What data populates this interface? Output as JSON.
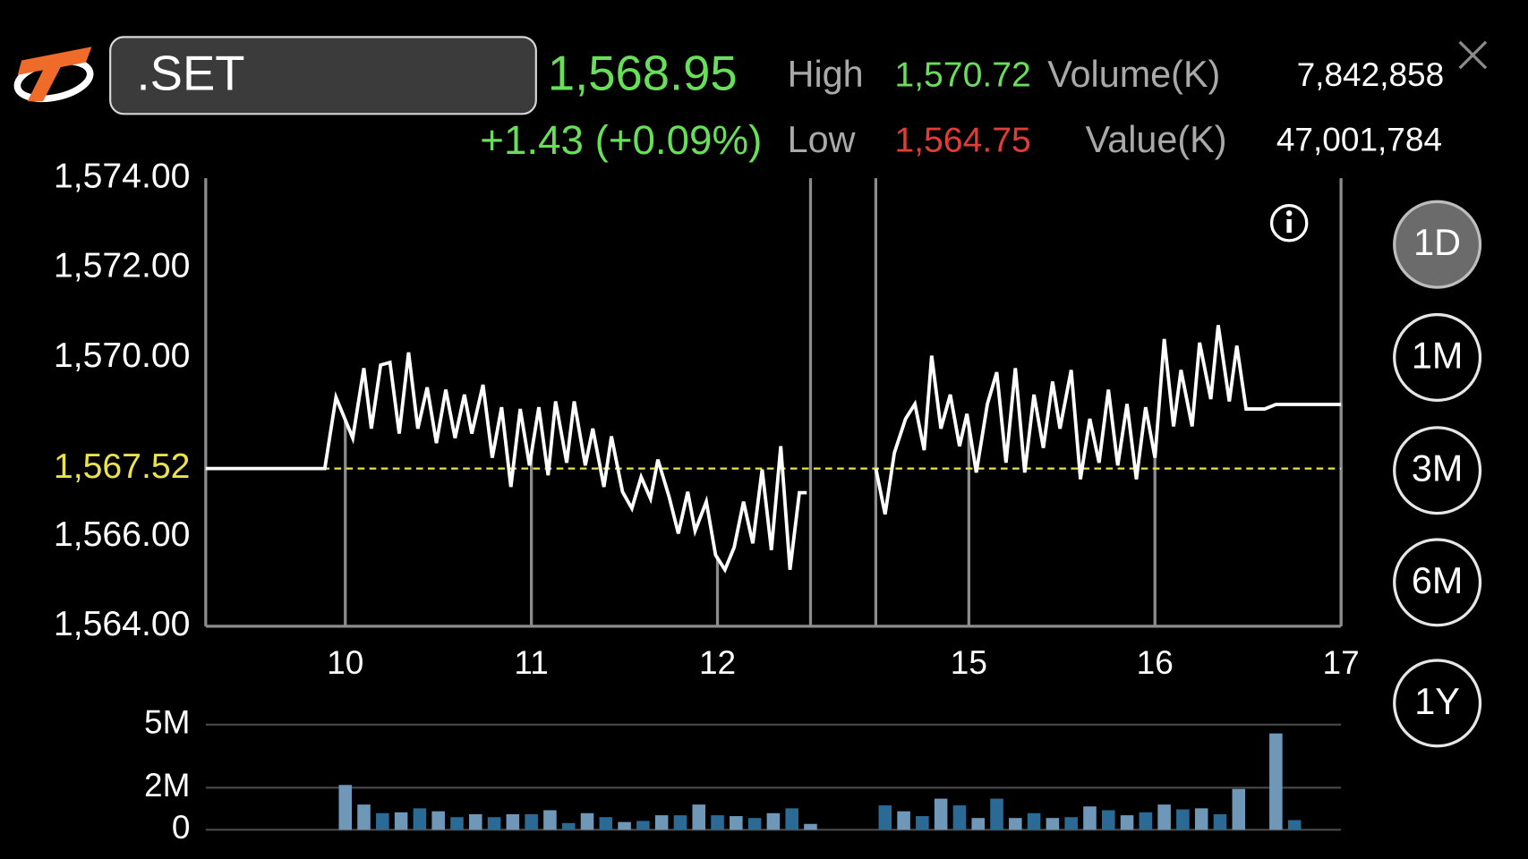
{
  "header": {
    "symbol": ".SET",
    "last": "1,568.95",
    "change": "+1.43 (+0.09%)",
    "high_label": "High",
    "high": "1,570.72",
    "low_label": "Low",
    "low": "1,564.75",
    "volume_label": "Volume(K)",
    "volume": "7,842,858",
    "value_label": "Value(K)",
    "value": "47,001,784"
  },
  "ranges": [
    "1D",
    "1M",
    "3M",
    "6M",
    "1Y"
  ],
  "selected_range": 0,
  "chart_data": [
    {
      "type": "line",
      "x": [
        9.25,
        9.89,
        9.95,
        10.04,
        10.1,
        10.14,
        10.19,
        10.24,
        10.29,
        10.34,
        10.39,
        10.44,
        10.49,
        10.54,
        10.59,
        10.64,
        10.68,
        10.74,
        10.79,
        10.84,
        10.89,
        10.94,
        10.99,
        11.04,
        11.09,
        11.13,
        11.19,
        11.23,
        11.29,
        11.33,
        11.39,
        11.43,
        11.49,
        11.54,
        11.59,
        11.64,
        11.68,
        11.74,
        11.79,
        11.84,
        11.88,
        11.94,
        11.99,
        12.04,
        12.09,
        12.14,
        12.19,
        12.24,
        12.29,
        12.34,
        12.39,
        12.44,
        12.48,
        13.5,
        14.5,
        14.55,
        14.6,
        14.66,
        14.71,
        14.76,
        14.8,
        14.85,
        14.9,
        14.95,
        14.99,
        15.04,
        15.1,
        15.15,
        15.2,
        15.25,
        15.3,
        15.35,
        15.4,
        15.45,
        15.49,
        15.55,
        15.6,
        15.65,
        15.7,
        15.75,
        15.8,
        15.85,
        15.9,
        15.95,
        16.0,
        16.05,
        16.1,
        16.14,
        16.2,
        16.24,
        16.3,
        16.34,
        16.4,
        16.44,
        16.49,
        16.59,
        16.65,
        17
      ],
      "series": [
        {
          "color": "#ffffff",
          "values": [
            1567.52,
            1567.52,
            1569.11,
            1568.2,
            1569.76,
            1568.41,
            1569.83,
            1569.89,
            1568.3,
            1570.11,
            1568.41,
            1569.33,
            1568.09,
            1569.28,
            1568.2,
            1569.17,
            1568.3,
            1569.39,
            1567.76,
            1568.89,
            1567.11,
            1568.85,
            1567.59,
            1568.89,
            1567.37,
            1569.02,
            1567.65,
            1569.02,
            1567.59,
            1568.41,
            1567.11,
            1568.24,
            1567.0,
            1566.63,
            1567.33,
            1566.85,
            1567.72,
            1566.89,
            1566.07,
            1567.0,
            1566.13,
            1566.78,
            1565.59,
            1565.26,
            1565.76,
            1566.78,
            1565.85,
            1567.5,
            1565.7,
            1568.02,
            1565.26,
            1566.98,
            1566.98,
            null,
            1567.52,
            1566.5,
            1567.87,
            1568.63,
            1568.96,
            1567.93,
            1570.04,
            1568.41,
            1569.17,
            1568.02,
            1568.74,
            1567.43,
            1568.96,
            1569.67,
            1567.65,
            1569.76,
            1567.43,
            1569.17,
            1567.98,
            1569.46,
            1568.41,
            1569.72,
            1567.28,
            1568.63,
            1567.65,
            1569.28,
            1567.59,
            1568.96,
            1567.28,
            1568.89,
            1567.76,
            1570.41,
            1568.46,
            1569.72,
            1568.46,
            1570.33,
            1569.07,
            1570.72,
            1569.02,
            1570.26,
            1568.85,
            1568.85,
            1568.95,
            1568.95
          ]
        }
      ],
      "xlim": [
        9.25,
        17
      ],
      "session_break": [
        12.5,
        14.5
      ],
      "xticks": [
        10,
        11,
        12,
        15,
        16,
        17
      ],
      "ylim": [
        1564,
        1574
      ],
      "yticks": [
        {
          "value": 1564,
          "label": "1,564.00"
        },
        {
          "value": 1566,
          "label": "1,566.00"
        },
        {
          "value": 1570,
          "label": "1,570.00"
        },
        {
          "value": 1572,
          "label": "1,572.00"
        },
        {
          "value": 1574,
          "label": "1,574.00"
        }
      ],
      "reference": {
        "value": 1567.52,
        "label": "1,567.52",
        "color": "#ebe24c"
      }
    },
    {
      "type": "bar",
      "x": [
        10.0,
        10.1,
        10.2,
        10.3,
        10.4,
        10.5,
        10.6,
        10.7,
        10.8,
        10.9,
        11.0,
        11.1,
        11.2,
        11.3,
        11.4,
        11.5,
        11.6,
        11.7,
        11.8,
        11.9,
        12.0,
        12.1,
        12.2,
        12.3,
        12.4,
        12.5,
        14.55,
        14.65,
        14.75,
        14.85,
        14.95,
        15.05,
        15.15,
        15.25,
        15.35,
        15.45,
        15.55,
        15.65,
        15.75,
        15.85,
        15.95,
        16.05,
        16.15,
        16.25,
        16.35,
        16.45,
        16.55,
        16.65,
        16.75
      ],
      "values": [
        2130000,
        1200000,
        790000,
        830000,
        1020000,
        880000,
        600000,
        740000,
        600000,
        740000,
        740000,
        930000,
        320000,
        790000,
        600000,
        370000,
        420000,
        690000,
        690000,
        1200000,
        690000,
        650000,
        560000,
        790000,
        1020000,
        280000,
        1160000,
        880000,
        650000,
        1480000,
        1160000,
        560000,
        1480000,
        560000,
        790000,
        560000,
        600000,
        1110000,
        930000,
        690000,
        830000,
        1200000,
        970000,
        1020000,
        740000,
        1940000,
        0,
        4580000,
        460000
      ],
      "colors": [
        "#6f97b8",
        "#6f97b8",
        "#2c6a96",
        "#6f97b8",
        "#2c6a96",
        "#6f97b8",
        "#2c6a96",
        "#6f97b8",
        "#2c6a96",
        "#6f97b8",
        "#2c6a96",
        "#6f97b8",
        "#2c6a96",
        "#6f97b8",
        "#2c6a96",
        "#6f97b8",
        "#2c6a96",
        "#6f97b8",
        "#2c6a96",
        "#6f97b8",
        "#2c6a96",
        "#6f97b8",
        "#2c6a96",
        "#6f97b8",
        "#2c6a96",
        "#6f97b8",
        "#2c6a96",
        "#6f97b8",
        "#2c6a96",
        "#6f97b8",
        "#2c6a96",
        "#6f97b8",
        "#2c6a96",
        "#6f97b8",
        "#2c6a96",
        "#6f97b8",
        "#2c6a96",
        "#6f97b8",
        "#2c6a96",
        "#6f97b8",
        "#2c6a96",
        "#6f97b8",
        "#2c6a96",
        "#6f97b8",
        "#2c6a96",
        "#6f97b8",
        "#2c6a96",
        "#6f97b8",
        "#2c6a96"
      ],
      "xlim": [
        9.25,
        17
      ],
      "session_break": [
        12.5,
        14.5
      ],
      "ylim": [
        0,
        5000000
      ],
      "yticks": [
        0,
        {
          "value": 2000000,
          "label": "2M"
        },
        {
          "value": 5000000,
          "label": "5M"
        }
      ],
      "grid": true
    }
  ]
}
